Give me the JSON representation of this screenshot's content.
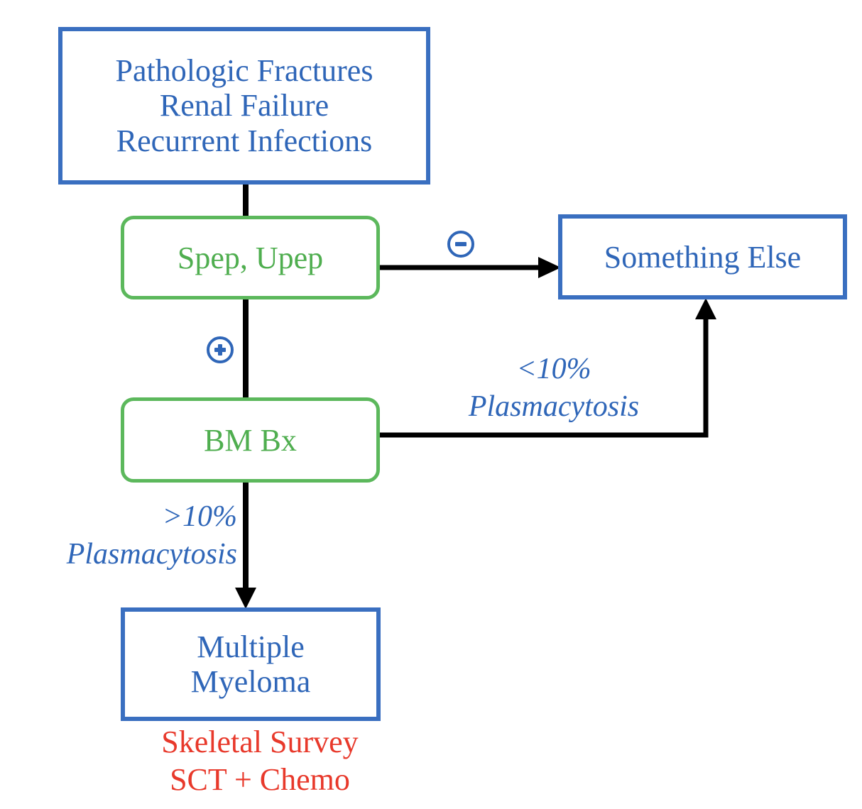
{
  "nodes": {
    "presentation": {
      "lines": [
        "Pathologic Fractures",
        "Renal Failure",
        "Recurrent Infections"
      ]
    },
    "spep": {
      "label": "Spep, Upep"
    },
    "something_else": {
      "label": "Something Else"
    },
    "bm_bx": {
      "label": "BM Bx"
    },
    "multiple_myeloma": {
      "lines": [
        "Multiple",
        "Myeloma"
      ]
    }
  },
  "edges": {
    "negative_sign": "minus-sign",
    "positive_sign": "plus-sign",
    "low_plasma": {
      "lines": [
        "<10%",
        "Plasmacytosis"
      ]
    },
    "high_plasma": {
      "lines": [
        ">10%",
        "Plasmacytosis"
      ]
    }
  },
  "treatment": {
    "lines": [
      "Skeletal Survey",
      "SCT + Chemo"
    ]
  },
  "colors": {
    "blue_box_border": "#3a6fc0",
    "blue_text": "#2f66b8",
    "green_box": "#5cb85c",
    "green_text": "#4fae4f",
    "red_text": "#e8392b",
    "connector": "#000000"
  }
}
